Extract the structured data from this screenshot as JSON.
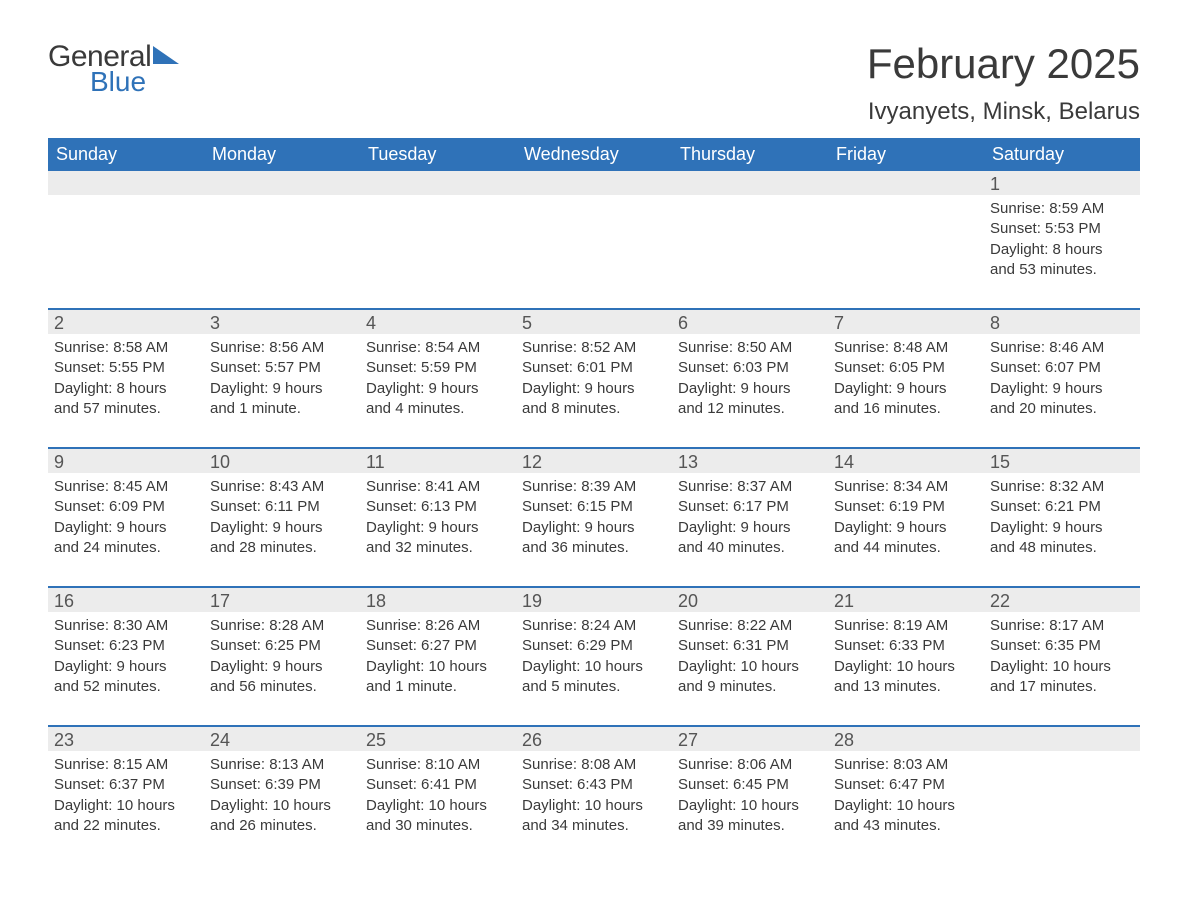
{
  "brand": {
    "word1": "General",
    "word2": "Blue",
    "accent_color": "#2f72b8"
  },
  "title": "February 2025",
  "location": "Ivyanyets, Minsk, Belarus",
  "colors": {
    "header_bg": "#2f72b8",
    "header_text": "#ffffff",
    "daynum_bg": "#ececec",
    "body_text": "#3a3a3a",
    "page_bg": "#ffffff"
  },
  "typography": {
    "title_fontsize": 42,
    "location_fontsize": 24,
    "dayheader_fontsize": 18,
    "cell_fontsize": 15
  },
  "day_headers": [
    "Sunday",
    "Monday",
    "Tuesday",
    "Wednesday",
    "Thursday",
    "Friday",
    "Saturday"
  ],
  "weeks": [
    [
      {
        "empty": true
      },
      {
        "empty": true
      },
      {
        "empty": true
      },
      {
        "empty": true
      },
      {
        "empty": true
      },
      {
        "empty": true
      },
      {
        "day": "1",
        "sunrise": "Sunrise: 8:59 AM",
        "sunset": "Sunset: 5:53 PM",
        "daylight1": "Daylight: 8 hours",
        "daylight2": "and 53 minutes."
      }
    ],
    [
      {
        "day": "2",
        "sunrise": "Sunrise: 8:58 AM",
        "sunset": "Sunset: 5:55 PM",
        "daylight1": "Daylight: 8 hours",
        "daylight2": "and 57 minutes."
      },
      {
        "day": "3",
        "sunrise": "Sunrise: 8:56 AM",
        "sunset": "Sunset: 5:57 PM",
        "daylight1": "Daylight: 9 hours",
        "daylight2": "and 1 minute."
      },
      {
        "day": "4",
        "sunrise": "Sunrise: 8:54 AM",
        "sunset": "Sunset: 5:59 PM",
        "daylight1": "Daylight: 9 hours",
        "daylight2": "and 4 minutes."
      },
      {
        "day": "5",
        "sunrise": "Sunrise: 8:52 AM",
        "sunset": "Sunset: 6:01 PM",
        "daylight1": "Daylight: 9 hours",
        "daylight2": "and 8 minutes."
      },
      {
        "day": "6",
        "sunrise": "Sunrise: 8:50 AM",
        "sunset": "Sunset: 6:03 PM",
        "daylight1": "Daylight: 9 hours",
        "daylight2": "and 12 minutes."
      },
      {
        "day": "7",
        "sunrise": "Sunrise: 8:48 AM",
        "sunset": "Sunset: 6:05 PM",
        "daylight1": "Daylight: 9 hours",
        "daylight2": "and 16 minutes."
      },
      {
        "day": "8",
        "sunrise": "Sunrise: 8:46 AM",
        "sunset": "Sunset: 6:07 PM",
        "daylight1": "Daylight: 9 hours",
        "daylight2": "and 20 minutes."
      }
    ],
    [
      {
        "day": "9",
        "sunrise": "Sunrise: 8:45 AM",
        "sunset": "Sunset: 6:09 PM",
        "daylight1": "Daylight: 9 hours",
        "daylight2": "and 24 minutes."
      },
      {
        "day": "10",
        "sunrise": "Sunrise: 8:43 AM",
        "sunset": "Sunset: 6:11 PM",
        "daylight1": "Daylight: 9 hours",
        "daylight2": "and 28 minutes."
      },
      {
        "day": "11",
        "sunrise": "Sunrise: 8:41 AM",
        "sunset": "Sunset: 6:13 PM",
        "daylight1": "Daylight: 9 hours",
        "daylight2": "and 32 minutes."
      },
      {
        "day": "12",
        "sunrise": "Sunrise: 8:39 AM",
        "sunset": "Sunset: 6:15 PM",
        "daylight1": "Daylight: 9 hours",
        "daylight2": "and 36 minutes."
      },
      {
        "day": "13",
        "sunrise": "Sunrise: 8:37 AM",
        "sunset": "Sunset: 6:17 PM",
        "daylight1": "Daylight: 9 hours",
        "daylight2": "and 40 minutes."
      },
      {
        "day": "14",
        "sunrise": "Sunrise: 8:34 AM",
        "sunset": "Sunset: 6:19 PM",
        "daylight1": "Daylight: 9 hours",
        "daylight2": "and 44 minutes."
      },
      {
        "day": "15",
        "sunrise": "Sunrise: 8:32 AM",
        "sunset": "Sunset: 6:21 PM",
        "daylight1": "Daylight: 9 hours",
        "daylight2": "and 48 minutes."
      }
    ],
    [
      {
        "day": "16",
        "sunrise": "Sunrise: 8:30 AM",
        "sunset": "Sunset: 6:23 PM",
        "daylight1": "Daylight: 9 hours",
        "daylight2": "and 52 minutes."
      },
      {
        "day": "17",
        "sunrise": "Sunrise: 8:28 AM",
        "sunset": "Sunset: 6:25 PM",
        "daylight1": "Daylight: 9 hours",
        "daylight2": "and 56 minutes."
      },
      {
        "day": "18",
        "sunrise": "Sunrise: 8:26 AM",
        "sunset": "Sunset: 6:27 PM",
        "daylight1": "Daylight: 10 hours",
        "daylight2": "and 1 minute."
      },
      {
        "day": "19",
        "sunrise": "Sunrise: 8:24 AM",
        "sunset": "Sunset: 6:29 PM",
        "daylight1": "Daylight: 10 hours",
        "daylight2": "and 5 minutes."
      },
      {
        "day": "20",
        "sunrise": "Sunrise: 8:22 AM",
        "sunset": "Sunset: 6:31 PM",
        "daylight1": "Daylight: 10 hours",
        "daylight2": "and 9 minutes."
      },
      {
        "day": "21",
        "sunrise": "Sunrise: 8:19 AM",
        "sunset": "Sunset: 6:33 PM",
        "daylight1": "Daylight: 10 hours",
        "daylight2": "and 13 minutes."
      },
      {
        "day": "22",
        "sunrise": "Sunrise: 8:17 AM",
        "sunset": "Sunset: 6:35 PM",
        "daylight1": "Daylight: 10 hours",
        "daylight2": "and 17 minutes."
      }
    ],
    [
      {
        "day": "23",
        "sunrise": "Sunrise: 8:15 AM",
        "sunset": "Sunset: 6:37 PM",
        "daylight1": "Daylight: 10 hours",
        "daylight2": "and 22 minutes."
      },
      {
        "day": "24",
        "sunrise": "Sunrise: 8:13 AM",
        "sunset": "Sunset: 6:39 PM",
        "daylight1": "Daylight: 10 hours",
        "daylight2": "and 26 minutes."
      },
      {
        "day": "25",
        "sunrise": "Sunrise: 8:10 AM",
        "sunset": "Sunset: 6:41 PM",
        "daylight1": "Daylight: 10 hours",
        "daylight2": "and 30 minutes."
      },
      {
        "day": "26",
        "sunrise": "Sunrise: 8:08 AM",
        "sunset": "Sunset: 6:43 PM",
        "daylight1": "Daylight: 10 hours",
        "daylight2": "and 34 minutes."
      },
      {
        "day": "27",
        "sunrise": "Sunrise: 8:06 AM",
        "sunset": "Sunset: 6:45 PM",
        "daylight1": "Daylight: 10 hours",
        "daylight2": "and 39 minutes."
      },
      {
        "day": "28",
        "sunrise": "Sunrise: 8:03 AM",
        "sunset": "Sunset: 6:47 PM",
        "daylight1": "Daylight: 10 hours",
        "daylight2": "and 43 minutes."
      },
      {
        "empty": true
      }
    ]
  ]
}
